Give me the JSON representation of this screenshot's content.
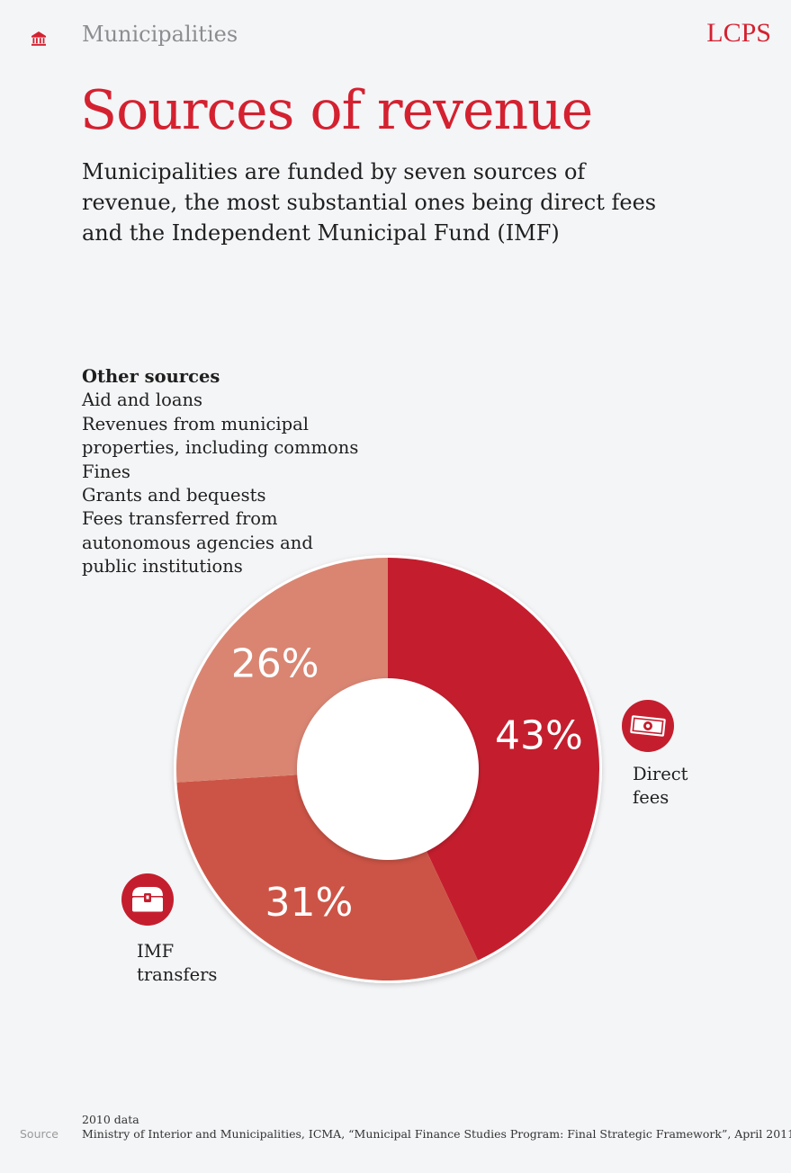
{
  "header": {
    "section": "Municipalities",
    "brand": "LCPS",
    "section_icon": "bank-building-icon"
  },
  "title": "Sources of revenue",
  "subtitle": "Municipalities are funded by seven sources of revenue, the most substantial ones being direct fees and the Independent Municipal Fund (IMF)",
  "other_sources": {
    "heading": "Other sources",
    "items": [
      "Aid and loans",
      "Revenues from municipal properties, including commons",
      "Fines",
      "Grants and bequests",
      "Fees transferred from autonomous agencies and public institutions"
    ]
  },
  "callouts": {
    "direct_fees": {
      "label": "Direct fees",
      "icon": "banknote-icon"
    },
    "imf": {
      "label": "IMF transfers",
      "icon": "treasure-chest-icon"
    }
  },
  "chart_data": {
    "type": "pie",
    "donut": true,
    "labels": [
      "Direct fees",
      "IMF transfers",
      "Other sources"
    ],
    "values": [
      43,
      31,
      26
    ],
    "value_labels": [
      "43%",
      "31%",
      "26%"
    ],
    "colors": [
      "#c41e2e",
      "#cc5446",
      "#d98572"
    ]
  },
  "footer": {
    "data_note": "2010 data",
    "source_label": "Source",
    "source_text": "Ministry of Interior and Municipalities, ICMA, “Municipal Finance Studies Program: Final Strategic Framework”, April 2011"
  }
}
